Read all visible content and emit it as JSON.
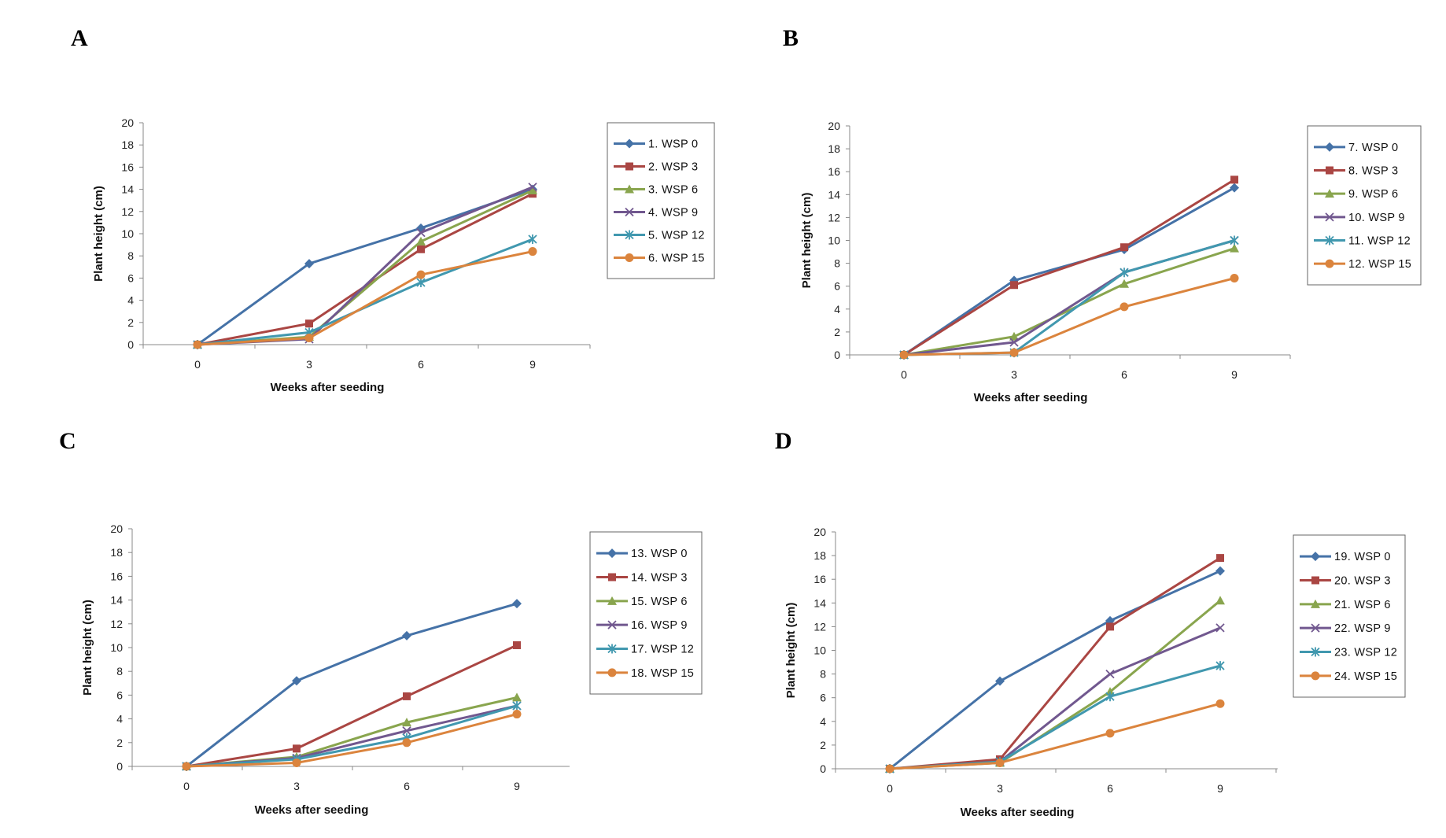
{
  "chart_data": [
    {
      "type": "line",
      "panel_label": "A",
      "xlabel": "Weeks after seeding",
      "ylabel": "Plant  height (cm)",
      "x": [
        0,
        3,
        6,
        9
      ],
      "ylim": [
        0,
        20
      ],
      "y_ticks": [
        0,
        2,
        4,
        6,
        8,
        10,
        12,
        14,
        16,
        18,
        20
      ],
      "x_ticks": [
        0,
        3,
        6,
        9
      ],
      "grid": false,
      "legend_position": "right",
      "series": [
        {
          "name": "1. WSP 0",
          "color": "#4572A7",
          "marker": "diamond",
          "values": [
            0,
            7.3,
            10.5,
            14.0
          ]
        },
        {
          "name": "2. WSP 3",
          "color": "#AA4643",
          "marker": "square",
          "values": [
            0,
            1.9,
            8.6,
            13.6
          ]
        },
        {
          "name": "3. WSP 6",
          "color": "#89A54E",
          "marker": "triangle",
          "values": [
            0,
            0.7,
            9.3,
            13.9
          ]
        },
        {
          "name": "4. WSP 9",
          "color": "#71588F",
          "marker": "x",
          "values": [
            0,
            0.5,
            10.1,
            14.2
          ]
        },
        {
          "name": "5. WSP 12",
          "color": "#4198AF",
          "marker": "star",
          "values": [
            0,
            1.1,
            5.6,
            9.5
          ]
        },
        {
          "name": "6. WSP 15",
          "color": "#DB843D",
          "marker": "circle",
          "values": [
            0,
            0.6,
            6.3,
            8.4
          ]
        }
      ]
    },
    {
      "type": "line",
      "panel_label": "B",
      "xlabel": "Weeks after seeding",
      "ylabel": "Plant  height (cm)",
      "x": [
        0,
        3,
        6,
        9
      ],
      "ylim": [
        0,
        20
      ],
      "y_ticks": [
        0,
        2,
        4,
        6,
        8,
        10,
        12,
        14,
        16,
        18,
        20
      ],
      "x_ticks": [
        0,
        3,
        6,
        9
      ],
      "grid": false,
      "legend_position": "right",
      "series": [
        {
          "name": "7. WSP 0",
          "color": "#4572A7",
          "marker": "diamond",
          "values": [
            0,
            6.5,
            9.2,
            14.6
          ]
        },
        {
          "name": "8. WSP 3",
          "color": "#AA4643",
          "marker": "square",
          "values": [
            0,
            6.1,
            9.4,
            15.3
          ]
        },
        {
          "name": "9. WSP 6",
          "color": "#89A54E",
          "marker": "triangle",
          "values": [
            0,
            1.6,
            6.2,
            9.3
          ]
        },
        {
          "name": "10. WSP 9",
          "color": "#71588F",
          "marker": "x",
          "values": [
            0,
            1.1,
            7.2,
            10.0
          ]
        },
        {
          "name": "11. WSP 12",
          "color": "#4198AF",
          "marker": "star",
          "values": [
            0,
            0.2,
            7.2,
            10.0
          ]
        },
        {
          "name": "12. WSP 15",
          "color": "#DB843D",
          "marker": "circle",
          "values": [
            0,
            0.2,
            4.2,
            6.7
          ]
        }
      ]
    },
    {
      "type": "line",
      "panel_label": "C",
      "xlabel": "Weeks after seeding",
      "ylabel": "Plant  height (cm)",
      "x": [
        0,
        3,
        6,
        9
      ],
      "ylim": [
        0,
        20
      ],
      "y_ticks": [
        0,
        2,
        4,
        6,
        8,
        10,
        12,
        14,
        16,
        18,
        20
      ],
      "x_ticks": [
        0,
        3,
        6,
        9
      ],
      "grid": false,
      "legend_position": "right",
      "series": [
        {
          "name": "13. WSP 0",
          "color": "#4572A7",
          "marker": "diamond",
          "values": [
            0,
            7.2,
            11.0,
            13.7
          ]
        },
        {
          "name": "14. WSP 3",
          "color": "#AA4643",
          "marker": "square",
          "values": [
            0,
            1.5,
            5.9,
            10.2
          ]
        },
        {
          "name": "15. WSP 6",
          "color": "#89A54E",
          "marker": "triangle",
          "values": [
            0,
            0.8,
            3.7,
            5.8
          ]
        },
        {
          "name": "16. WSP 9",
          "color": "#71588F",
          "marker": "x",
          "values": [
            0,
            0.7,
            3.0,
            5.1
          ]
        },
        {
          "name": "17. WSP 12",
          "color": "#4198AF",
          "marker": "star",
          "values": [
            0,
            0.6,
            2.4,
            5.1
          ]
        },
        {
          "name": "18. WSP 15",
          "color": "#DB843D",
          "marker": "circle",
          "values": [
            0,
            0.3,
            2.0,
            4.4
          ]
        }
      ]
    },
    {
      "type": "line",
      "panel_label": "D",
      "xlabel": "Weeks after seeding",
      "ylabel": "Plant  height (cm)",
      "x": [
        0,
        3,
        6,
        9
      ],
      "ylim": [
        0,
        20
      ],
      "y_ticks": [
        0,
        2,
        4,
        6,
        8,
        10,
        12,
        14,
        16,
        18,
        20
      ],
      "x_ticks": [
        0,
        3,
        6,
        9
      ],
      "grid": false,
      "legend_position": "right",
      "series": [
        {
          "name": "19. WSP 0",
          "color": "#4572A7",
          "marker": "diamond",
          "values": [
            0,
            7.4,
            12.5,
            16.7
          ]
        },
        {
          "name": "20. WSP 3",
          "color": "#AA4643",
          "marker": "square",
          "values": [
            0,
            0.8,
            12.0,
            17.8
          ]
        },
        {
          "name": "21. WSP 6",
          "color": "#89A54E",
          "marker": "triangle",
          "values": [
            0,
            0.5,
            6.5,
            14.2
          ]
        },
        {
          "name": "22. WSP 9",
          "color": "#71588F",
          "marker": "x",
          "values": [
            0,
            0.6,
            8.0,
            11.9
          ]
        },
        {
          "name": "23. WSP 12",
          "color": "#4198AF",
          "marker": "star",
          "values": [
            0,
            0.6,
            6.1,
            8.7
          ]
        },
        {
          "name": "24. WSP 15",
          "color": "#DB843D",
          "marker": "circle",
          "values": [
            0,
            0.5,
            3.0,
            5.5
          ]
        }
      ]
    }
  ]
}
